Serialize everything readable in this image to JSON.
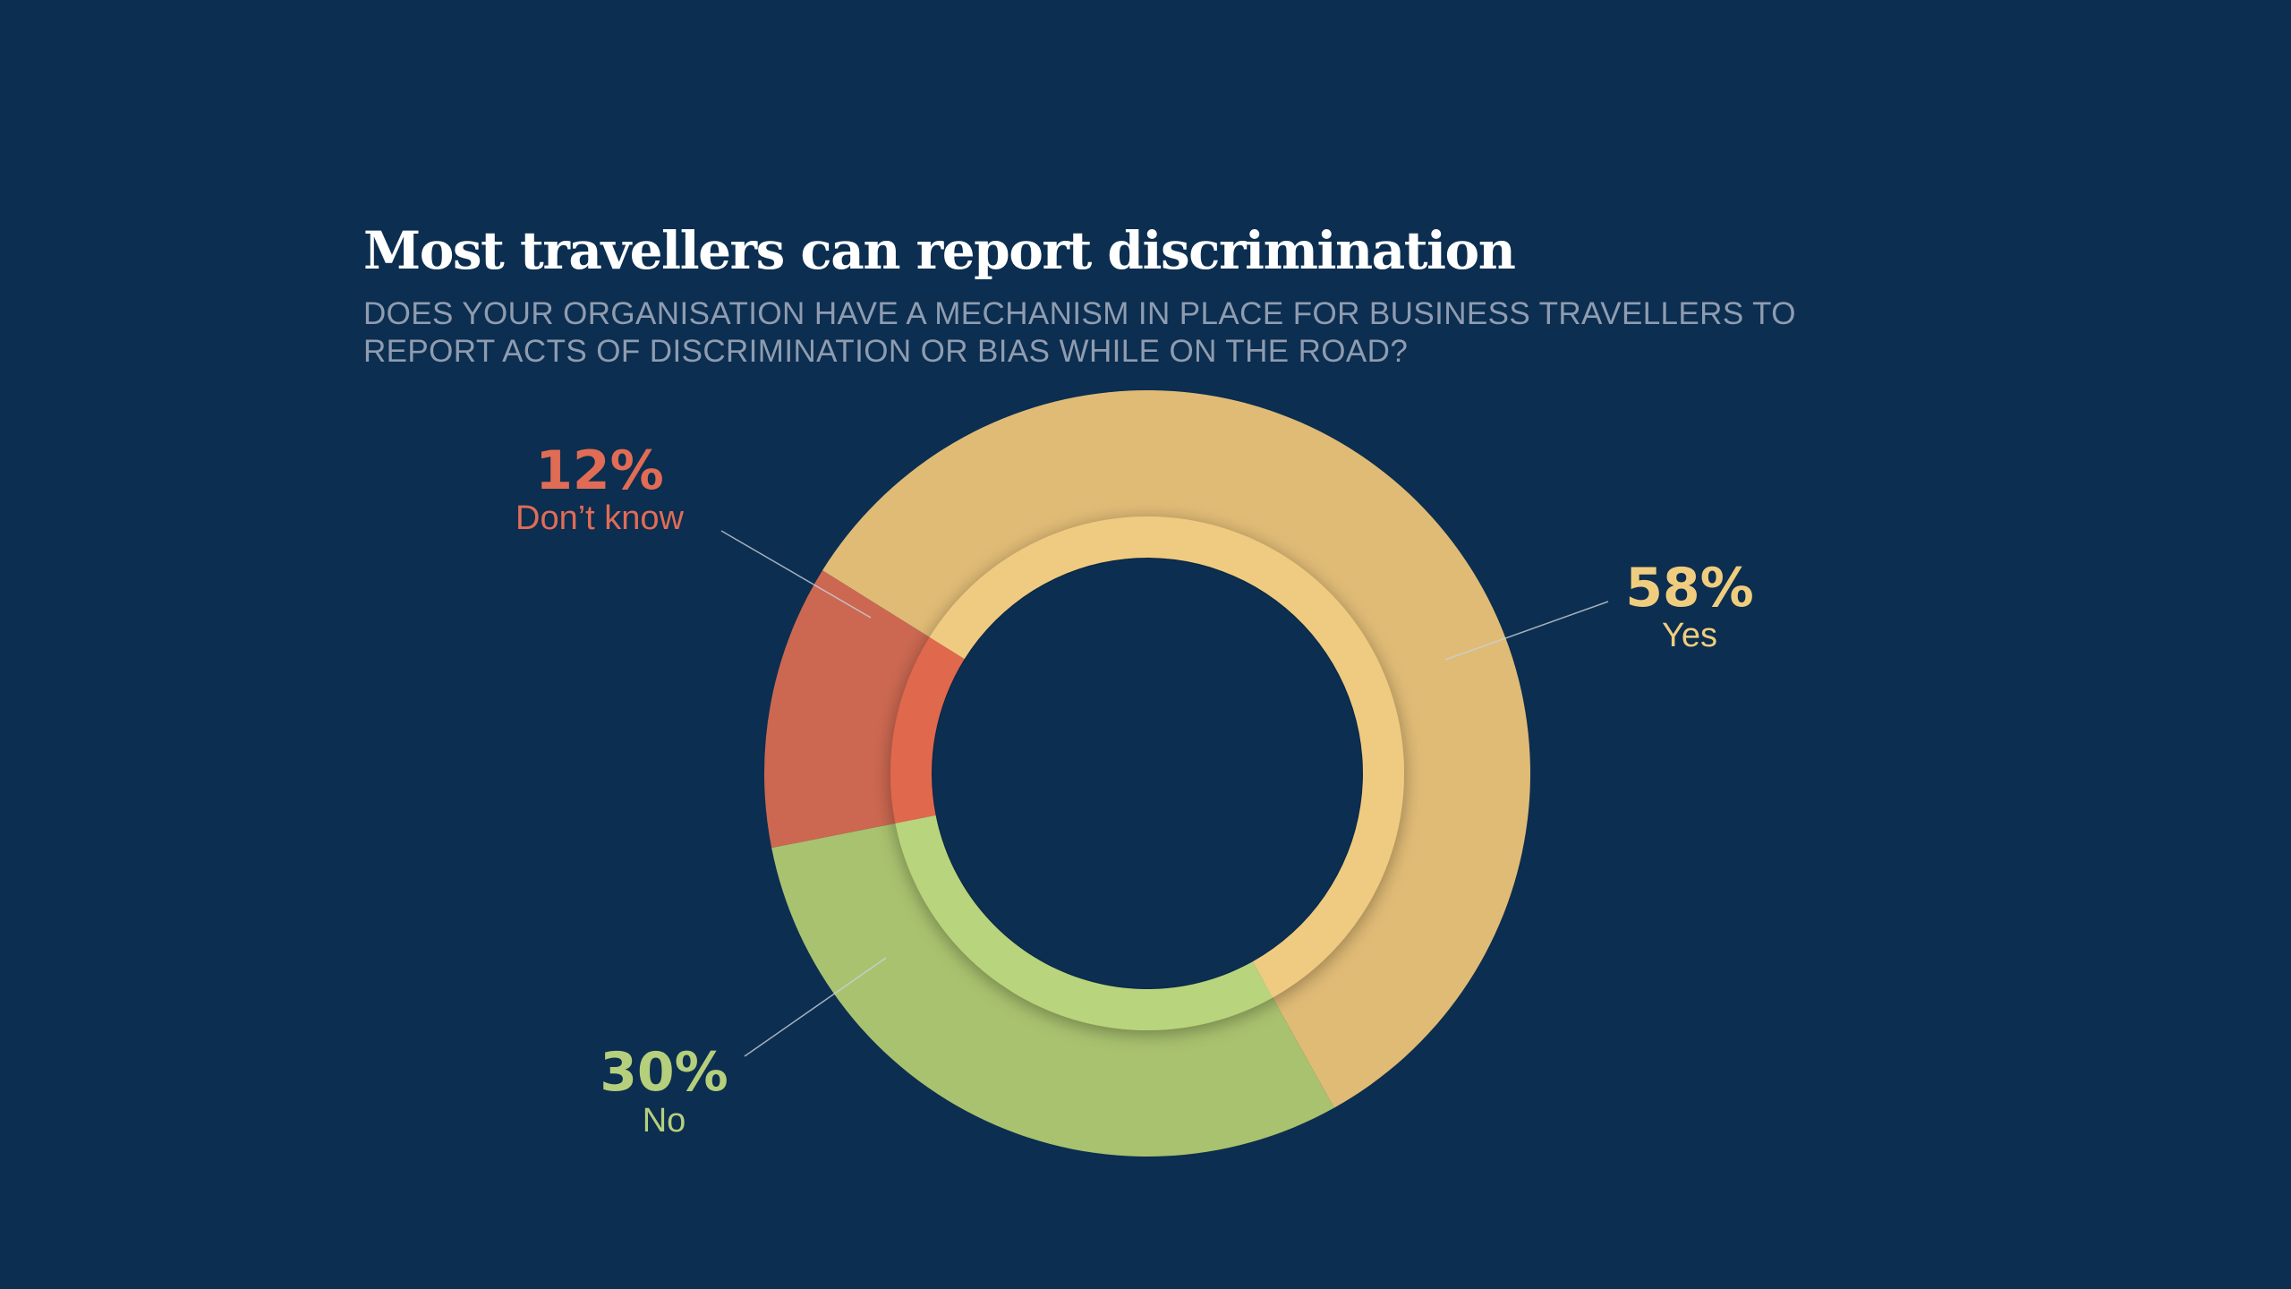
{
  "title": "Most travellers can report discrimination",
  "subtitle": "DOES YOUR ORGANISATION HAVE A MECHANISM IN PLACE FOR BUSINESS TRAVELLERS TO REPORT ACTS OF DISCRIMINATION OR BIAS WHILE ON THE ROAD?",
  "colors": {
    "background": "#0c2e50",
    "title": "#ffffff",
    "subtitle": "#8f9cb0",
    "leader_line": "#c9d2dd"
  },
  "chart_data": {
    "type": "pie",
    "style": "donut",
    "title": "Most travellers can report discrimination",
    "subtitle": "DOES YOUR ORGANISATION HAVE A MECHANISM IN PLACE FOR BUSINESS TRAVELLERS TO REPORT ACTS OF DISCRIMINATION OR BIAS WHILE ON THE ROAD?",
    "unit": "%",
    "legend": "none",
    "slices": [
      {
        "label": "Yes",
        "value": 58,
        "value_label": "58%",
        "color": "#e0bb76",
        "inner_color": "#eecb80",
        "label_color": "#f0cd7e"
      },
      {
        "label": "No",
        "value": 30,
        "value_label": "30%",
        "color": "#a9c26f",
        "inner_color": "#b8d47c",
        "label_color": "#b5cf7c"
      },
      {
        "label": "Don’t know",
        "value": 12,
        "value_label": "12%",
        "color": "#cc6851",
        "inner_color": "#e0674e",
        "label_color": "#e16c55"
      }
    ]
  }
}
